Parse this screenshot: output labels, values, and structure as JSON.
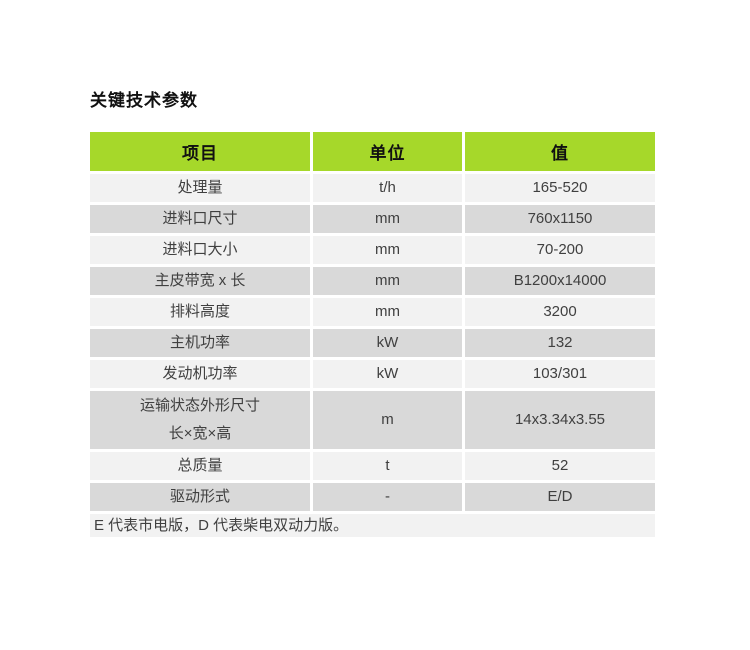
{
  "page": {
    "title": "关键技术参数"
  },
  "colors": {
    "header_green": "#a6d82a",
    "row_light": "#f2f2f2",
    "row_dark": "#d9d9d9",
    "body_text": "#404040",
    "header_text": "#111111"
  },
  "table": {
    "headers": [
      "项目",
      "单位",
      "值"
    ],
    "rows": [
      {
        "item": "处理量",
        "unit": "t/h",
        "value": "165-520"
      },
      {
        "item": "进料口尺寸",
        "unit": "mm",
        "value": "760x1150"
      },
      {
        "item": "进料口大小",
        "unit": "mm",
        "value": "70-200"
      },
      {
        "item": "主皮带宽 x 长",
        "unit": "mm",
        "value": "B1200x14000"
      },
      {
        "item": "排料高度",
        "unit": "mm",
        "value": "3200"
      },
      {
        "item": "主机功率",
        "unit": "kW",
        "value": "132"
      },
      {
        "item": "发动机功率",
        "unit": "kW",
        "value": "103/301"
      },
      {
        "item": "运输状态外形尺寸\n长×宽×高",
        "unit": "m",
        "value": "14x3.34x3.55"
      },
      {
        "item": "总质量",
        "unit": "t",
        "value": "52"
      },
      {
        "item": "驱动形式",
        "unit": "-",
        "value": "E/D"
      }
    ],
    "footnote": "E 代表市电版，D 代表柴电双动力版。"
  }
}
